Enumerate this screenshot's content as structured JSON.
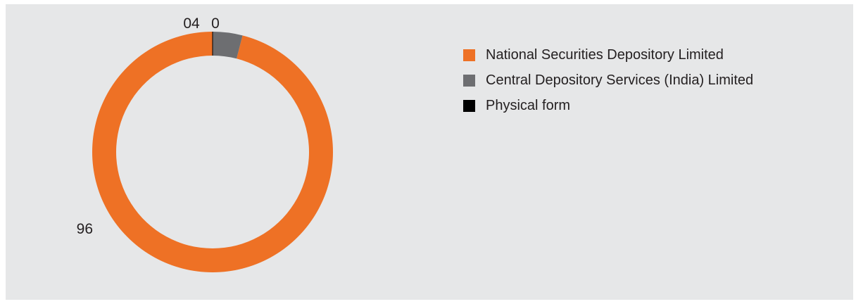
{
  "chart_data": {
    "type": "pie",
    "donut": true,
    "title": "",
    "categories": [
      "National Securities Depository Limited",
      "Central Depository Services (India) Limited",
      "Physical form"
    ],
    "values": [
      96,
      4,
      0
    ],
    "data_labels": [
      "96",
      "04",
      "0"
    ],
    "colors": [
      "#ee7125",
      "#6d6e71",
      "#000000"
    ],
    "legend_position": "right",
    "grid": false
  }
}
